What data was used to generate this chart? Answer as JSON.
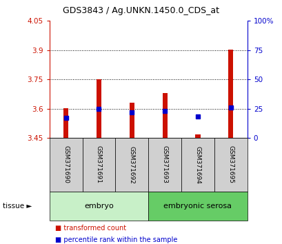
{
  "title": "GDS3843 / Ag.UNKN.1450.0_CDS_at",
  "samples": [
    "GSM371690",
    "GSM371691",
    "GSM371692",
    "GSM371693",
    "GSM371694",
    "GSM371695"
  ],
  "red_values": [
    3.601,
    3.75,
    3.63,
    3.68,
    3.468,
    3.902
  ],
  "blue_percentiles": [
    17,
    25,
    22,
    23,
    18,
    26
  ],
  "y_min": 3.45,
  "y_max": 4.05,
  "y_ticks": [
    3.45,
    3.6,
    3.75,
    3.9,
    4.05
  ],
  "y_tick_labels": [
    "3.45",
    "3.6",
    "3.75",
    "3.9",
    "4.05"
  ],
  "right_y_ticks": [
    0,
    25,
    50,
    75,
    100
  ],
  "right_y_labels": [
    "0",
    "25",
    "50",
    "75",
    "100%"
  ],
  "bar_color": "#cc1100",
  "dot_color": "#0000cc",
  "bg_label": "#d0d0d0",
  "tissue_groups": [
    {
      "label": "embryo",
      "samples": [
        0,
        1,
        2
      ],
      "color": "#c8f0c8"
    },
    {
      "label": "embryonic serosa",
      "samples": [
        3,
        4,
        5
      ],
      "color": "#66cc66"
    }
  ],
  "legend_items": [
    {
      "label": "transformed count",
      "color": "#cc1100"
    },
    {
      "label": "percentile rank within the sample",
      "color": "#0000cc"
    }
  ],
  "bar_width": 0.15,
  "base_value": 3.45
}
